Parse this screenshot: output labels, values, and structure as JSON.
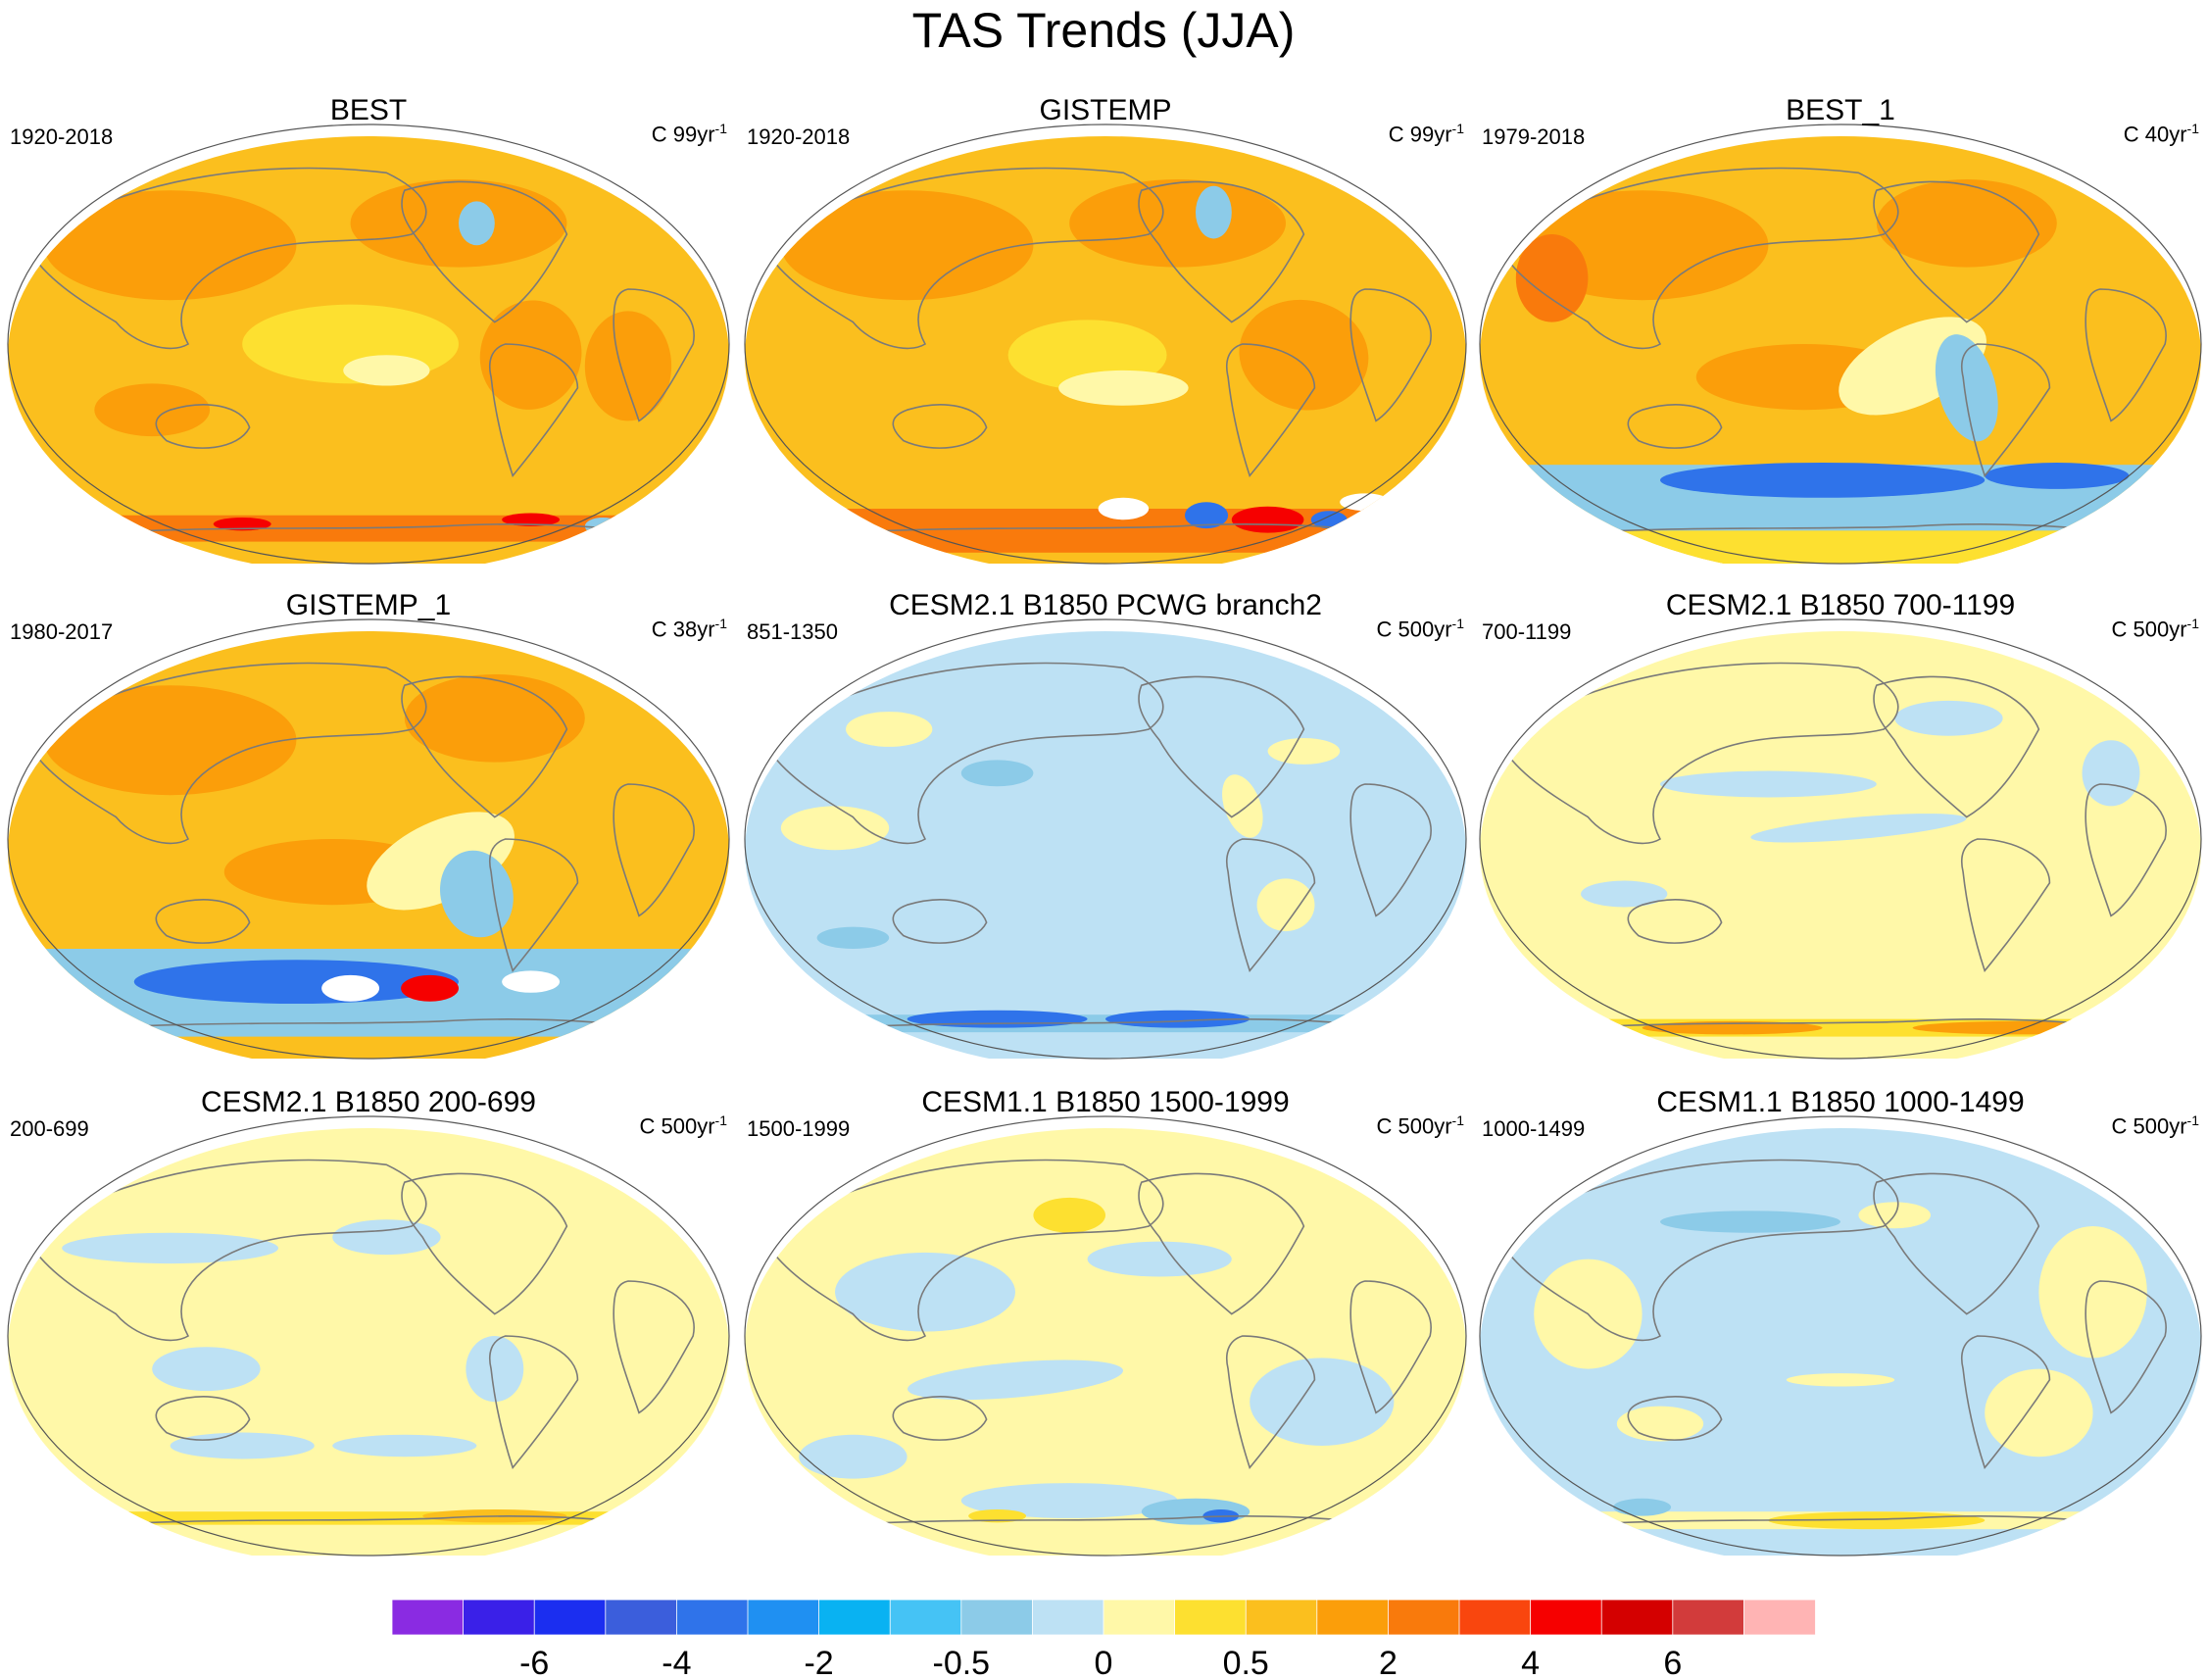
{
  "figure": {
    "title": "TAS Trends (JJA)"
  },
  "chart_data": {
    "type": "heatmap",
    "title": "TAS Trends (JJA)",
    "projection": "Robinson-like world map",
    "panels": [
      {
        "title": "BEST",
        "period": "1920-2018",
        "units": "C 99yr",
        "units_exp": "-1",
        "pattern": "warm"
      },
      {
        "title": "GISTEMP",
        "period": "1920-2018",
        "units": "C 99yr",
        "units_exp": "-1",
        "pattern": "warm_gis"
      },
      {
        "title": "BEST_1",
        "period": "1979-2018",
        "units": "C 40yr",
        "units_exp": "-1",
        "pattern": "recent"
      },
      {
        "title": "GISTEMP_1",
        "period": "1980-2017",
        "units": "C 38yr",
        "units_exp": "-1",
        "pattern": "recent_gis"
      },
      {
        "title": "CESM2.1 B1850 PCWG branch2",
        "period": "851-1350",
        "units": "C 500yr",
        "units_exp": "-1",
        "pattern": "cool"
      },
      {
        "title": "CESM2.1 B1850 700-1199",
        "period": "700-1199",
        "units": "C 500yr",
        "units_exp": "-1",
        "pattern": "neutral_warm"
      },
      {
        "title": "CESM2.1 B1850 200-699",
        "period": "200-699",
        "units": "C 500yr",
        "units_exp": "-1",
        "pattern": "neutral"
      },
      {
        "title": "CESM1.1 B1850 1500-1999",
        "period": "1500-1999",
        "units": "C 500yr",
        "units_exp": "-1",
        "pattern": "mixed"
      },
      {
        "title": "CESM1.1 B1850 1000-1499",
        "period": "1000-1499",
        "units": "C 500yr",
        "units_exp": "-1",
        "pattern": "mixed_cool"
      }
    ],
    "colorbar": {
      "colors": [
        "#8a2be2",
        "#3a20e8",
        "#1b2ef0",
        "#3b5edc",
        "#2f73ea",
        "#1f90f2",
        "#09b2f2",
        "#45c3f5",
        "#8ccbe8",
        "#bde1f4",
        "#fff8a8",
        "#fde030",
        "#fbbf1e",
        "#fb9e0a",
        "#f97a0c",
        "#f9460e",
        "#f60000",
        "#d40000",
        "#d23b3b",
        "#ffb4b4"
      ],
      "tick_labels": [
        "-6",
        "-4",
        "-2",
        "-0.5",
        "0",
        "0.5",
        "2",
        "4",
        "6"
      ]
    },
    "value_classes": {
      "strong_cool": "#2f73ea",
      "cool": "#8ccbe8",
      "slight_cool": "#bde1f4",
      "slight_warm": "#fff8a8",
      "warm_low": "#fde030",
      "warm": "#fbbf1e",
      "warm_high": "#fb9e0a",
      "hot": "#f97a0c",
      "very_hot": "#f60000",
      "missing": "#ffffff"
    }
  }
}
